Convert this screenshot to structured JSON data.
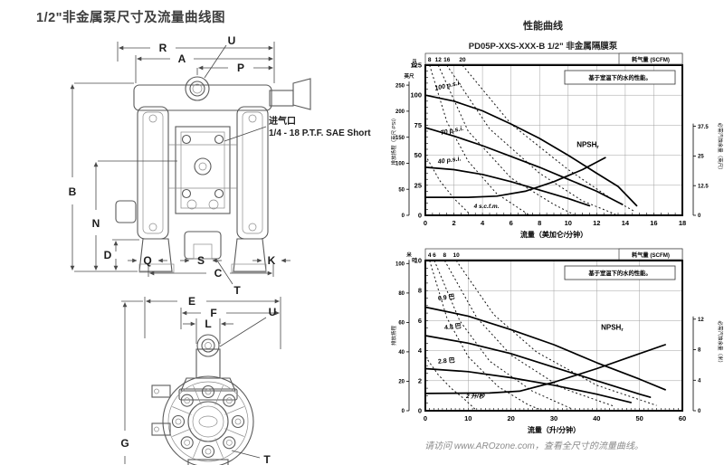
{
  "page": {
    "title": "1/2\"非金属泵尺寸及流量曲线图",
    "footer": "请访问 www.AROzone.com，查看全尺寸的流量曲线。"
  },
  "drawing": {
    "front_dims": [
      "R",
      "A",
      "P",
      "U",
      "B",
      "N",
      "D",
      "Q",
      "S",
      "C",
      "K",
      "T"
    ],
    "side_dims": [
      "E",
      "F",
      "L",
      "U",
      "G",
      "T"
    ],
    "air_inlet": {
      "line1": "进气口",
      "line2": "1/4 - 18 P.T.F. SAE Short"
    }
  },
  "charts": {
    "title": "性能曲线",
    "subtitle": "PD05P-XXS-XXX-B 1/2\" 非金属隔膜泵"
  },
  "chart_data": [
    {
      "type": "line",
      "air_axis_label": "耗气量 (SCFM)",
      "note": "基于室温下的水的性能。",
      "xlabel": "流量（美加仑/分钟）",
      "xlim": [
        0,
        18
      ],
      "x_ticks": [
        0,
        2,
        4,
        6,
        8,
        10,
        12,
        14,
        16,
        18
      ],
      "x_minor": 0.5,
      "ylim": [
        0,
        125
      ],
      "y_minor": 5,
      "y_inner": {
        "unit": "PSI",
        "ticks": [
          0,
          25,
          50,
          75,
          100,
          125
        ]
      },
      "y_outer": {
        "unit": "英尺",
        "ticks": [
          0,
          50,
          100,
          150,
          200,
          250
        ],
        "inner_per_unit": 0.4334,
        "axis_title": "排放扬程（英尺·PSI）"
      },
      "y_right": {
        "title": "必需汽蚀余量（英尺）",
        "ticks": [
          0,
          12.5,
          25,
          37.5
        ],
        "inner_per_unit": 1.976
      },
      "air_top_ticks": [
        {
          "label": "8",
          "x": 0.3
        },
        {
          "label": "12",
          "x": 0.9
        },
        {
          "label": "16",
          "x": 1.5
        },
        {
          "label": "20",
          "x": 2.6
        }
      ],
      "series": [
        {
          "name": "100 p.s.i.",
          "points": [
            [
              0,
              100
            ],
            [
              2,
              95
            ],
            [
              4,
              87
            ],
            [
              6,
              76
            ],
            [
              8,
              64
            ],
            [
              10,
              50
            ],
            [
              12,
              35
            ],
            [
              13.5,
              24
            ],
            [
              14.8,
              8
            ]
          ],
          "label": {
            "text": "100 p.s.i.",
            "x": 0.7,
            "y": 104,
            "rot": -13,
            "italic": true
          }
        },
        {
          "name": "70 p.s.i.",
          "points": [
            [
              0,
              73
            ],
            [
              2,
              66
            ],
            [
              4,
              58
            ],
            [
              6,
              49
            ],
            [
              8,
              40
            ],
            [
              10,
              30
            ],
            [
              12,
              20
            ],
            [
              13.8,
              9
            ]
          ],
          "label": {
            "text": "70 p.s.i.",
            "x": 1.1,
            "y": 67,
            "rot": -12,
            "italic": true
          }
        },
        {
          "name": "40 p.s.i.",
          "points": [
            [
              0,
              40
            ],
            [
              2,
              38
            ],
            [
              4,
              34
            ],
            [
              6,
              28
            ],
            [
              8,
              21
            ],
            [
              10,
              14
            ],
            [
              11.5,
              8
            ]
          ],
          "label": {
            "text": "40 p.s.i.",
            "x": 0.9,
            "y": 43,
            "rot": -8,
            "italic": true
          }
        },
        {
          "name": "NPSHr",
          "points": [
            [
              0,
              15
            ],
            [
              3,
              15
            ],
            [
              5,
              16
            ],
            [
              7,
              20
            ],
            [
              9,
              28
            ],
            [
              11,
              38
            ],
            [
              12.6,
              48
            ]
          ],
          "label": {
            "text": "NPSH",
            "sub": "r",
            "x": 10.6,
            "y": 57
          }
        }
      ],
      "air_curves": [
        {
          "name": "4 s.c.f.m.",
          "points": [
            [
              0,
              50
            ],
            [
              1,
              29
            ],
            [
              2,
              14
            ],
            [
              3.2,
              0
            ]
          ],
          "label": {
            "text": "4 s.c.f.m.",
            "x": 3.4,
            "y": 6
          }
        },
        {
          "name": "8 SCFM",
          "points": [
            [
              0.3,
              125
            ],
            [
              1.5,
              78
            ],
            [
              3,
              45
            ],
            [
              5,
              18
            ],
            [
              7.3,
              0
            ]
          ]
        },
        {
          "name": "12 SCFM",
          "points": [
            [
              0.9,
              125
            ],
            [
              3,
              70
            ],
            [
              6,
              31
            ],
            [
              9,
              9
            ],
            [
              10.5,
              0
            ]
          ]
        },
        {
          "name": "16 SCFM",
          "points": [
            [
              1.5,
              125
            ],
            [
              4.5,
              72
            ],
            [
              8,
              35
            ],
            [
              11,
              12
            ],
            [
              13.3,
              1
            ]
          ]
        },
        {
          "name": "20 SCFM",
          "points": [
            [
              2.6,
              125
            ],
            [
              6,
              76
            ],
            [
              10,
              38
            ],
            [
              13,
              14
            ],
            [
              14.7,
              3
            ]
          ]
        }
      ]
    },
    {
      "type": "line",
      "air_axis_label": "耗气量 (SCFM)",
      "note": "基于室温下的水的性能。",
      "xlabel": "流量（升/分钟）",
      "xlim": [
        0,
        60
      ],
      "x_ticks": [
        0,
        10,
        20,
        30,
        40,
        50,
        60
      ],
      "x_minor": 1,
      "ylim": [
        0,
        10
      ],
      "y_minor": 0.5,
      "y_inner": {
        "unit": "巴",
        "ticks": [
          0,
          2,
          4,
          6,
          8,
          10
        ]
      },
      "y_outer": {
        "unit": "米",
        "ticks": [
          0,
          20,
          40,
          60,
          80,
          100
        ],
        "inner_per_unit": 0.098,
        "axis_title": "排放扬程"
      },
      "y_right": {
        "title": "必需汽蚀余量（米）",
        "ticks": [
          0,
          4,
          8,
          12
        ],
        "inner_per_unit": 0.508
      },
      "air_top_ticks": [
        {
          "label": "4",
          "x": 1.0
        },
        {
          "label": "6",
          "x": 2.1
        },
        {
          "label": "8",
          "x": 4.5
        },
        {
          "label": "10",
          "x": 7.2
        }
      ],
      "series": [
        {
          "name": "6.9 巴",
          "points": [
            [
              0,
              6.9
            ],
            [
              10,
              6.3
            ],
            [
              20,
              5.4
            ],
            [
              30,
              4.4
            ],
            [
              40,
              3.2
            ],
            [
              50,
              2.1
            ],
            [
              56,
              1.4
            ]
          ],
          "label": {
            "text": "6.9 巴",
            "x": 3,
            "y": 7.35,
            "rot": -6
          }
        },
        {
          "name": "4.8 巴",
          "points": [
            [
              0,
              5.0
            ],
            [
              10,
              4.5
            ],
            [
              20,
              3.8
            ],
            [
              30,
              2.9
            ],
            [
              40,
              2.0
            ],
            [
              50,
              1.1
            ],
            [
              52.5,
              0.9
            ]
          ],
          "label": {
            "text": "4.8 巴",
            "x": 4.5,
            "y": 5.4,
            "rot": -6
          }
        },
        {
          "name": "2.8 巴",
          "points": [
            [
              0,
              2.8
            ],
            [
              10,
              2.6
            ],
            [
              20,
              2.2
            ],
            [
              30,
              1.7
            ],
            [
              40,
              1.1
            ],
            [
              48,
              0.55
            ]
          ],
          "label": {
            "text": "2.8 巴",
            "x": 3,
            "y": 3.15,
            "rot": -4
          }
        },
        {
          "name": "NPSHr",
          "points": [
            [
              0,
              1.15
            ],
            [
              15,
              1.18
            ],
            [
              22,
              1.3
            ],
            [
              30,
              1.9
            ],
            [
              40,
              2.8
            ],
            [
              48,
              3.6
            ],
            [
              56,
              4.4
            ]
          ],
          "label": {
            "text": "NPSH",
            "sub": "r",
            "x": 41,
            "y": 5.4
          }
        }
      ],
      "air_curves": [
        {
          "name": "2 升/秒",
          "points": [
            [
              0,
              3.6
            ],
            [
              3,
              2.4
            ],
            [
              6,
              1.5
            ],
            [
              9,
              0.8
            ],
            [
              12,
              0
            ]
          ],
          "label": {
            "text": "2 升/秒",
            "x": 9.5,
            "y": 0.85
          }
        },
        {
          "name": "4 SCFM",
          "points": [
            [
              1,
              10
            ],
            [
              5,
              6.2
            ],
            [
              10,
              3.6
            ],
            [
              17,
              1.6
            ],
            [
              24,
              0.4
            ],
            [
              27.5,
              0
            ]
          ]
        },
        {
          "name": "6 SCFM",
          "points": [
            [
              2.1,
              10
            ],
            [
              8,
              6
            ],
            [
              15,
              3.3
            ],
            [
              25,
              1.3
            ],
            [
              34,
              0.15
            ]
          ]
        },
        {
          "name": "8 SCFM",
          "points": [
            [
              4.5,
              10
            ],
            [
              12,
              6.2
            ],
            [
              20,
              3.7
            ],
            [
              32,
              1.5
            ],
            [
              44,
              0.3
            ]
          ]
        },
        {
          "name": "10 SCFM",
          "points": [
            [
              7.2,
              10
            ],
            [
              16,
              6.4
            ],
            [
              26,
              3.9
            ],
            [
              40,
              1.7
            ],
            [
              54,
              0.35
            ]
          ]
        }
      ]
    }
  ]
}
